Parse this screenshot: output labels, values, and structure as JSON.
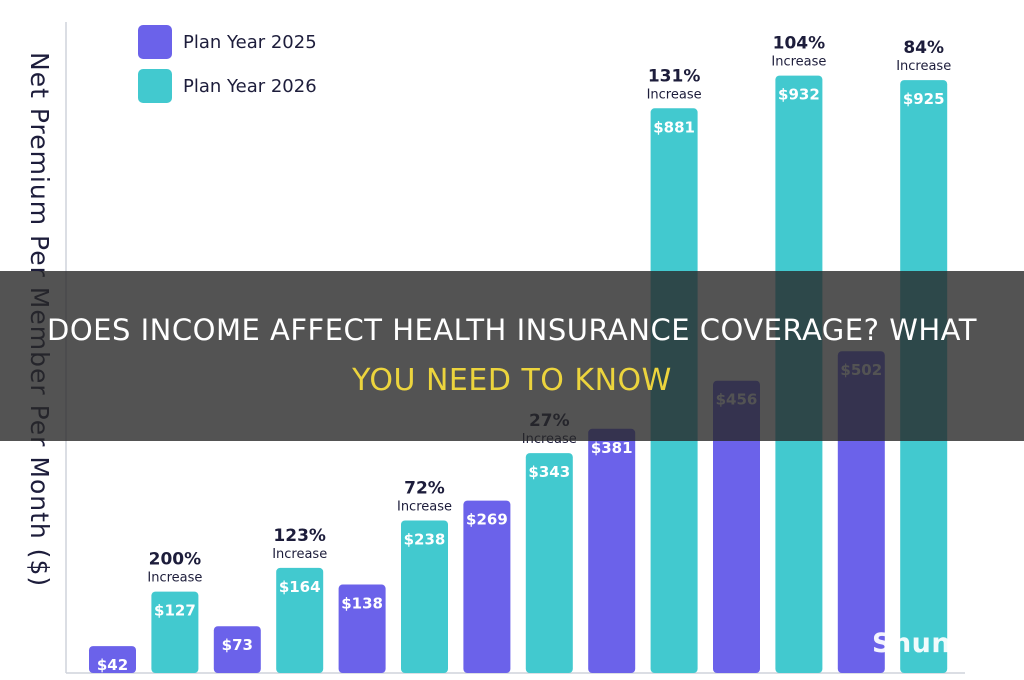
{
  "chart_data": {
    "type": "bar",
    "ylabel": "Net Premium Per Member Per Month ($)",
    "ylim": [
      0,
      1000
    ],
    "grid": false,
    "legend_position": "top-left",
    "series": [
      {
        "name": "Plan Year 2025",
        "color": "#6b62ea",
        "values": [
          42,
          73,
          138,
          269,
          381,
          456,
          502
        ]
      },
      {
        "name": "Plan Year 2026",
        "color": "#42c9cf",
        "values": [
          127,
          164,
          238,
          343,
          881,
          932,
          925
        ]
      }
    ],
    "value_labels_2025": [
      "$42",
      "$73",
      "$138",
      "$269",
      "$381",
      "$456",
      "$502"
    ],
    "value_labels_2026": [
      "$127",
      "$164",
      "$238",
      "$343",
      "$881",
      "$932",
      "$925"
    ],
    "annotations": [
      {
        "pct": "200%",
        "word": "Increase"
      },
      {
        "pct": "123%",
        "word": "Increase"
      },
      {
        "pct": "72%",
        "word": "Increase"
      },
      {
        "pct": "27%",
        "word": "Increase"
      },
      {
        "pct": "131%",
        "word": "Increase"
      },
      {
        "pct": "104%",
        "word": "Increase"
      },
      {
        "pct": "84%",
        "word": "Increase"
      }
    ]
  },
  "banner": {
    "line1": "DOES INCOME AFFECT HEALTH INSURANCE COVERAGE? WHAT",
    "line2": "YOU NEED TO KNOW"
  },
  "watermark": "Shun"
}
